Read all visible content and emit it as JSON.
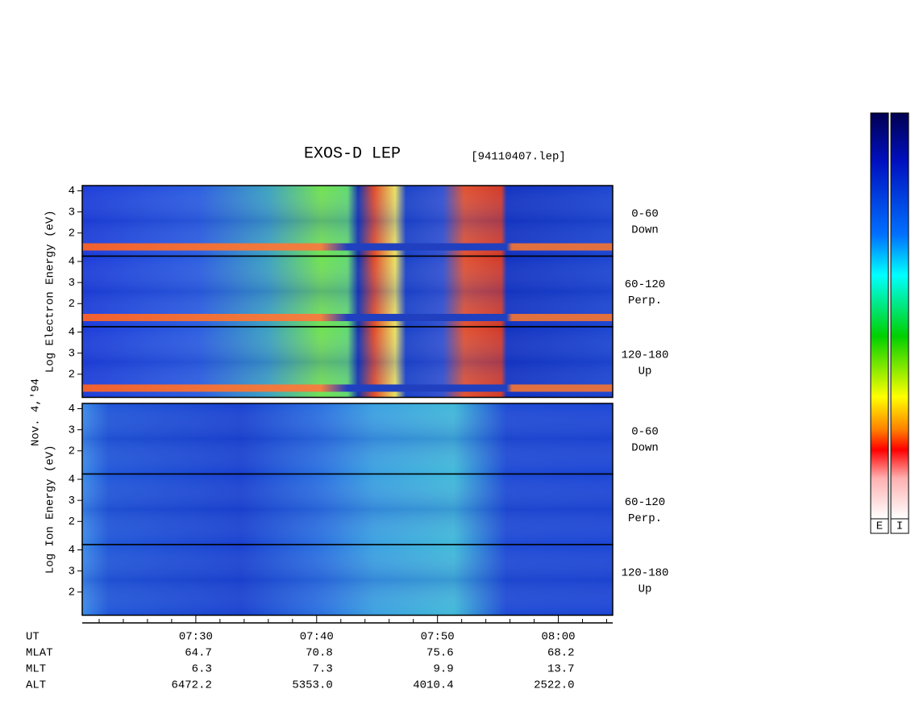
{
  "chart_data": {
    "type": "spectrogram",
    "title": "EXOS-D LEP",
    "file": "[94110407.lep]",
    "date_label": "Nov. 4,'94",
    "x_label": "UT",
    "xlim": [
      440.6,
      484.5
    ],
    "xticks": [
      {
        "value": 450,
        "label": "07:30"
      },
      {
        "value": 460,
        "label": "07:40"
      },
      {
        "value": 470,
        "label": "07:50"
      },
      {
        "value": 480,
        "label": "08:00"
      }
    ],
    "xminor_ticks": [
      442,
      444,
      446,
      448,
      452,
      454,
      456,
      458,
      462,
      464,
      466,
      468,
      472,
      474,
      476,
      478,
      482,
      484
    ],
    "x_rows": [
      {
        "name": "MLAT",
        "values": [
          64.7,
          70.8,
          75.6,
          68.2
        ]
      },
      {
        "name": "MLT",
        "values": [
          6.3,
          7.3,
          9.9,
          13.7
        ]
      },
      {
        "name": "ALT",
        "values": [
          6472.2,
          5353,
          4010.4,
          2522
        ],
        "value_labels": [
          "6472.2",
          "5353.0",
          "4010.4",
          "2522.0"
        ]
      }
    ],
    "groups": [
      {
        "ylabel": "Log Electron Energy (eV)",
        "panels": [
          {
            "angle": "0-60",
            "direction": "Down",
            "ylim": [
              0.9,
              4.25
            ],
            "yticks": [
              2,
              3,
              4
            ]
          },
          {
            "angle": "60-120",
            "direction": "Perp.",
            "ylim": [
              0.9,
              4.25
            ],
            "yticks": [
              2,
              3,
              4
            ]
          },
          {
            "angle": "120-180",
            "direction": "Up",
            "ylim": [
              0.9,
              4.25
            ],
            "yticks": [
              2,
              3,
              4
            ]
          }
        ]
      },
      {
        "ylabel": "Log Ion Energy (eV)",
        "panels": [
          {
            "angle": "0-60",
            "direction": "Down",
            "ylim": [
              0.9,
              4.25
            ],
            "yticks": [
              2,
              3,
              4
            ]
          },
          {
            "angle": "60-120",
            "direction": "Perp.",
            "ylim": [
              0.9,
              4.25
            ],
            "yticks": [
              2,
              3,
              4
            ]
          },
          {
            "angle": "120-180",
            "direction": "Up",
            "ylim": [
              0.9,
              4.25
            ],
            "yticks": [
              2,
              3,
              4
            ]
          }
        ]
      }
    ],
    "colorbars": [
      "E",
      "I"
    ]
  }
}
